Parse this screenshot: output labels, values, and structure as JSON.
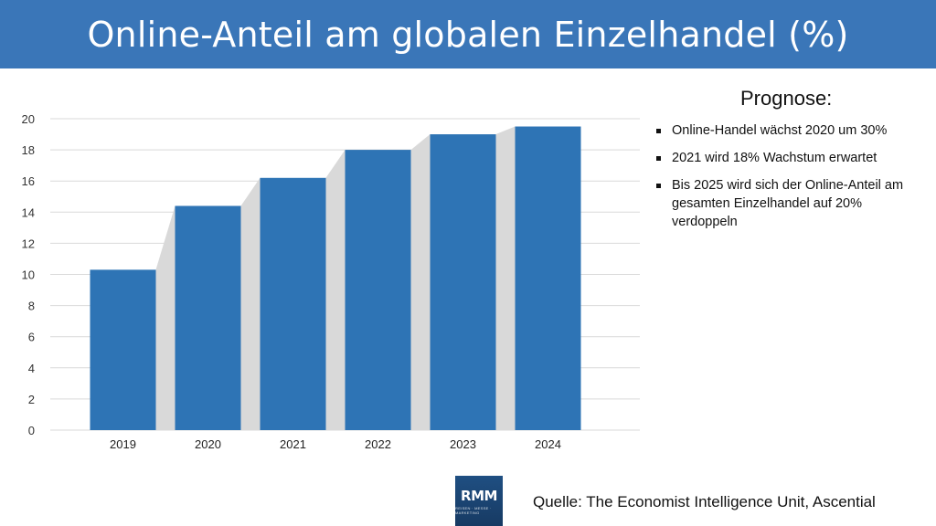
{
  "header": {
    "title": "Online-Anteil am globalen Einzelhandel (%)"
  },
  "chart_data": {
    "type": "bar",
    "categories": [
      "2019",
      "2020",
      "2021",
      "2022",
      "2023",
      "2024"
    ],
    "values": [
      10.3,
      14.4,
      16.2,
      18.0,
      19.0,
      19.5
    ],
    "title": "",
    "xlabel": "",
    "ylabel": "",
    "ylim": [
      0,
      20
    ],
    "yticks": [
      0,
      2,
      4,
      6,
      8,
      10,
      12,
      14,
      16,
      18,
      20
    ],
    "grid": true,
    "bar_color": "#2e74b5",
    "connector_color": "#d9d9d9"
  },
  "forecast": {
    "heading": "Prognose:",
    "items": [
      "Online-Handel wächst 2020 um 30%",
      "2021 wird 18% Wachstum erwartet",
      "Bis 2025 wird sich der Online-Anteil am gesamten Einzelhandel auf 20% verdoppeln"
    ]
  },
  "logo": {
    "text": "RMM",
    "subtext": "REISEN · MESSE · MARKETING"
  },
  "source": {
    "text": "Quelle: The Economist Intelligence Unit, Ascential"
  },
  "colors": {
    "title_bar": "#3a76b8",
    "grid": "#d9d9d9"
  }
}
